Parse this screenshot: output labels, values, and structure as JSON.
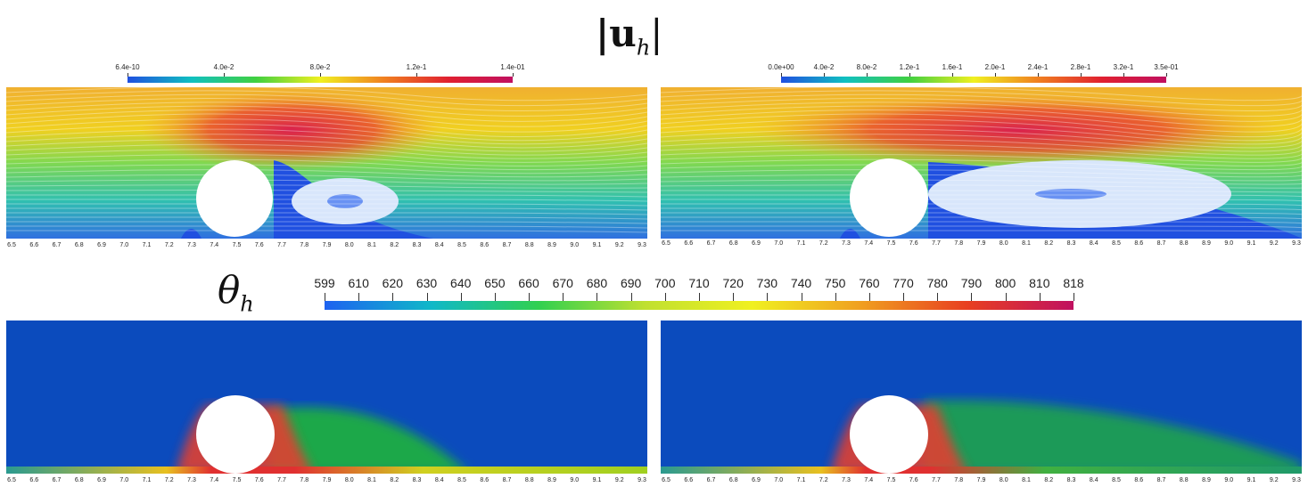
{
  "title_velocity": "|u",
  "title_velocity_sub": "h",
  "title_velocity_end": "|",
  "title_temperature": "θ",
  "title_temperature_sub": "h",
  "colorbar_velocity_left": {
    "ticks": [
      "6.4e-10",
      "4.0e-2",
      "8.0e-2",
      "1.2e-1",
      "1.4e-01"
    ],
    "colors": [
      "#2050e0",
      "#10c0c0",
      "#40d040",
      "#f0f020",
      "#f08020",
      "#e02030",
      "#c01060"
    ]
  },
  "colorbar_velocity_right": {
    "ticks": [
      "0.0e+00",
      "4.0e-2",
      "8.0e-2",
      "1.2e-1",
      "1.6e-1",
      "2.0e-1",
      "2.4e-1",
      "2.8e-1",
      "3.2e-1",
      "3.5e-01"
    ],
    "colors": [
      "#2050e0",
      "#10c0c0",
      "#40d040",
      "#f0f020",
      "#f08020",
      "#e02030",
      "#c01060"
    ]
  },
  "colorbar_temperature": {
    "ticks": [
      "599",
      "610",
      "620",
      "630",
      "640",
      "650",
      "660",
      "670",
      "680",
      "690",
      "700",
      "710",
      "720",
      "730",
      "740",
      "750",
      "760",
      "770",
      "780",
      "790",
      "800",
      "810",
      "818"
    ],
    "colors": [
      "#1e62f0",
      "#10b8c8",
      "#30d050",
      "#c0e030",
      "#f0f020",
      "#f0a020",
      "#e84020",
      "#c01060"
    ]
  },
  "x_axis_ticks": [
    "6.5",
    "6.6",
    "6.7",
    "6.8",
    "6.9",
    "7.0",
    "7.1",
    "7.2",
    "7.3",
    "7.4",
    "7.5",
    "7.6",
    "7.7",
    "7.8",
    "7.9",
    "8.0",
    "8.1",
    "8.2",
    "8.3",
    "8.4",
    "8.5",
    "8.6",
    "8.7",
    "8.8",
    "8.9",
    "9.0",
    "9.1",
    "9.2",
    "9.3"
  ],
  "colors": {
    "temperature_background": "#0b4bbd",
    "temperature_wake": "#1aa84a",
    "stream_hot": "#e83040",
    "stream_cool": "#2060e0"
  }
}
